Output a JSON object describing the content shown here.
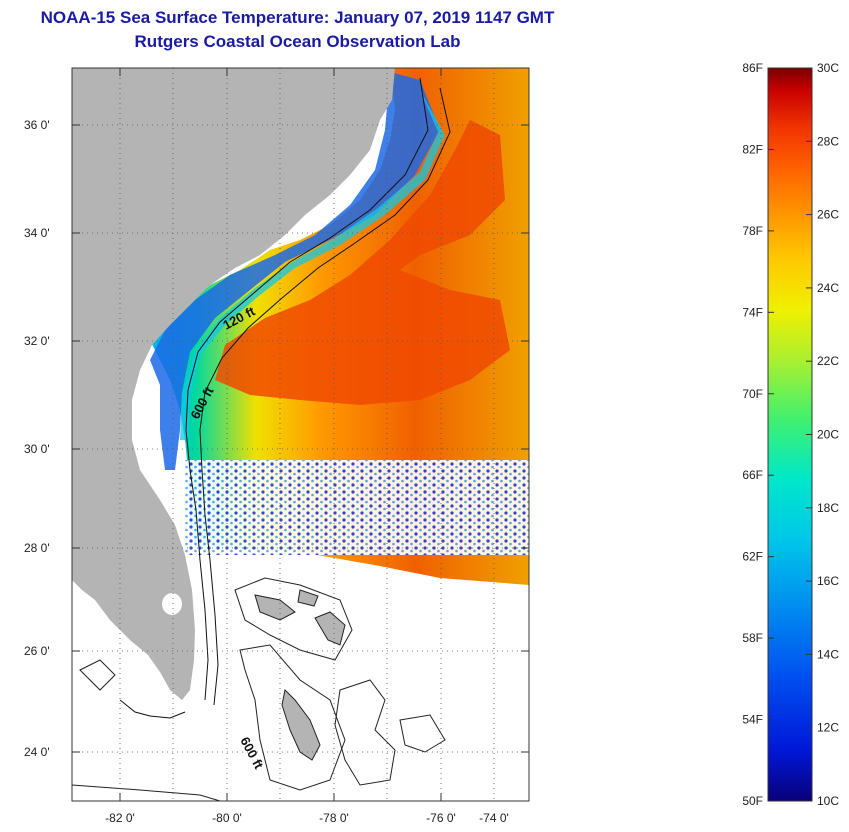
{
  "header": {
    "title": "NOAA-15 Sea Surface Temperature:  January 07, 2019 1147 GMT",
    "subtitle": "Rutgers Coastal Ocean Observation Lab"
  },
  "map": {
    "lat_labels": [
      "36 0'",
      "34 0'",
      "32 0'",
      "30 0'",
      "28 0'",
      "26 0'",
      "24 0'"
    ],
    "lon_labels": [
      "-82 0'",
      "-80 0'",
      "-78 0'",
      "-76 0'",
      "-74 0'"
    ],
    "isobath_labels": [
      "120 ft",
      "600 ft",
      "600 ft"
    ],
    "colors": {
      "land": "#b4b4b4",
      "missing": "#ffffff",
      "frame": "#333333",
      "grid": "#555555"
    }
  },
  "colorbar": {
    "fahrenheit_labels": [
      "86F",
      "82F",
      "78F",
      "74F",
      "70F",
      "66F",
      "62F",
      "58F",
      "54F",
      "50F"
    ],
    "celsius_labels": [
      "30C",
      "28C",
      "26C",
      "24C",
      "22C",
      "20C",
      "18C",
      "16C",
      "14C",
      "12C",
      "10C"
    ],
    "range_f": [
      50,
      86
    ],
    "range_c": [
      10,
      30
    ],
    "scale_colors": [
      "#0a007a",
      "#0018d8",
      "#0050f0",
      "#0090f0",
      "#00c8e8",
      "#00e8c8",
      "#40f070",
      "#a8f030",
      "#f0f000",
      "#ffc800",
      "#ff9600",
      "#ff6400",
      "#f03200",
      "#c80000",
      "#7a0000"
    ]
  }
}
